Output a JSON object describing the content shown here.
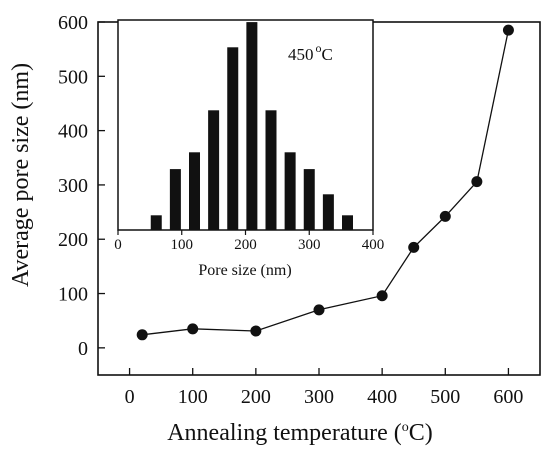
{
  "chart_data": [
    {
      "type": "line",
      "title": "",
      "xlabel": "Annealing temperature (",
      "xlabel_sup": "o",
      "xlabel_unit": "C)",
      "ylabel": "Average pore size (nm)",
      "xlim": [
        -50,
        650
      ],
      "ylim": [
        -50,
        600
      ],
      "xticks": [
        0,
        100,
        200,
        300,
        400,
        500,
        600
      ],
      "yticks": [
        0,
        100,
        200,
        300,
        400,
        500,
        600
      ],
      "marker": "filled-circle",
      "series": [
        {
          "x": [
            20,
            100,
            200,
            300,
            400,
            450,
            500,
            550,
            600
          ],
          "y": [
            24,
            35,
            31,
            70,
            96,
            185,
            242,
            306,
            585
          ]
        }
      ]
    },
    {
      "type": "bar",
      "inset": true,
      "annotation": "450",
      "annotation_sup": "o",
      "annotation_unit": "C",
      "xlabel": "Pore size (nm)",
      "ylabel": "",
      "xlim": [
        0,
        400
      ],
      "xticks": [
        0,
        100,
        200,
        300,
        400
      ],
      "ylim": [
        0,
        1
      ],
      "x": [
        60,
        90,
        120,
        150,
        180,
        210,
        240,
        270,
        300,
        330,
        360
      ],
      "values": [
        0.07,
        0.29,
        0.37,
        0.57,
        0.87,
        0.99,
        0.57,
        0.37,
        0.29,
        0.17,
        0.07
      ]
    }
  ]
}
